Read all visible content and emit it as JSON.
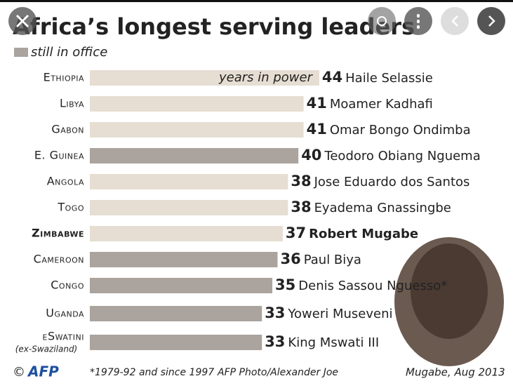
{
  "chart_data": {
    "type": "bar",
    "orientation": "horizontal",
    "title": "Africa’s longest serving leaders",
    "legend": {
      "label": "still in office",
      "color": "#aaa39e"
    },
    "categories": [
      "Ethiopia",
      "Libya",
      "Gabon",
      "E. Guinea",
      "Angola",
      "Togo",
      "Zimbabwe",
      "Cameroon",
      "Congo",
      "Uganda",
      "eSwatini"
    ],
    "values": [
      44,
      41,
      41,
      40,
      38,
      38,
      37,
      36,
      35,
      33,
      33
    ],
    "leaders": [
      "Haile Selassie",
      "Moamer Kadhafi",
      "Omar Bongo Ondimba",
      "Teodoro Obiang Nguema",
      "Jose Eduardo dos Santos",
      "Eyadema Gnassingbe",
      "Robert Mugabe",
      "Paul Biya",
      "Denis Sassou Nguesso*",
      "Yoweri Museveni",
      "King Mswati III"
    ],
    "colors": [
      "#e6ded2",
      "#e6ded2",
      "#e6ded2",
      "#aaa39e",
      "#e6ded2",
      "#e6ded2",
      "#e6ded2",
      "#aaa39e",
      "#aaa39e",
      "#aaa39e",
      "#aaa39e"
    ],
    "highlight_index": 6,
    "annotations": {
      "inside_bar": "years in power",
      "former_name": "(ex-Swaziland)",
      "copyright": "©",
      "logo": "AFP",
      "footnote": "*1979-92 and since 1997",
      "credit": "AFP Photo/Alexander Joe",
      "photo_caption": "Mugabe, Aug 2013"
    }
  }
}
